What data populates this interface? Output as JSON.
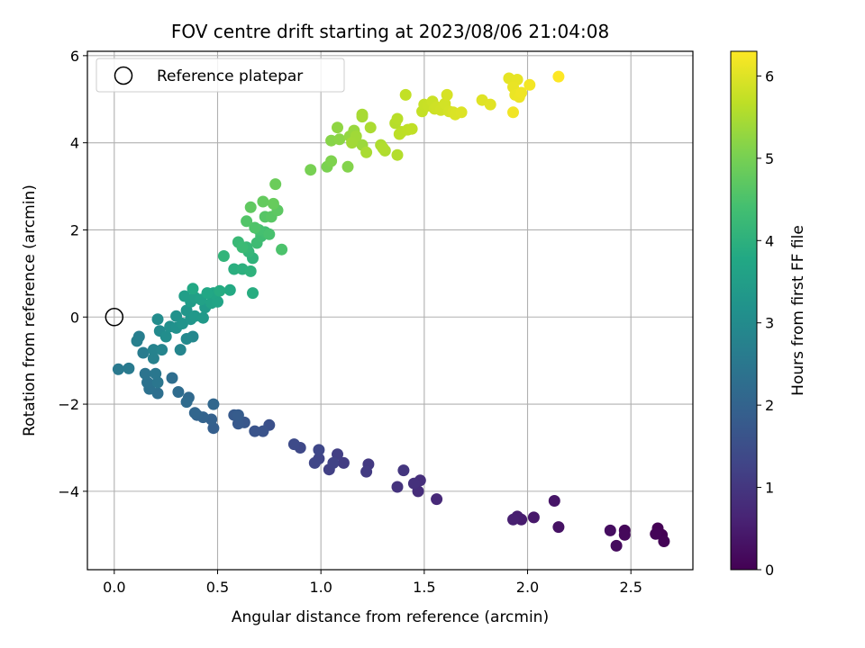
{
  "chart_data": {
    "type": "scatter",
    "title": "FOV centre drift starting at 2023/08/06 21:04:08",
    "xlabel": "Angular distance from reference (arcmin)",
    "ylabel": "Rotation from reference (arcmin)",
    "xlim": [
      -0.13,
      2.8
    ],
    "ylim": [
      -5.8,
      6.1
    ],
    "xticks": [
      0.0,
      0.5,
      1.0,
      1.5,
      2.0,
      2.5
    ],
    "xtick_labels": [
      "0.0",
      "0.5",
      "1.0",
      "1.5",
      "2.0",
      "2.5"
    ],
    "yticks": [
      -4,
      -2,
      0,
      2,
      4,
      6
    ],
    "ytick_labels": [
      "−4",
      "−2",
      "0",
      "2",
      "4",
      "6"
    ],
    "grid": true,
    "legend": {
      "position": "top-left",
      "entries": [
        "Reference platepar"
      ]
    },
    "reference_point": {
      "x": 0.0,
      "y": 0.0
    },
    "colorbar": {
      "label": "Hours from first FF file",
      "colormap": "viridis",
      "range": [
        0,
        6.3
      ],
      "ticks": [
        0,
        1,
        2,
        3,
        4,
        5,
        6
      ],
      "tick_labels": [
        "0",
        "1",
        "2",
        "3",
        "4",
        "5",
        "6"
      ]
    },
    "series": [
      {
        "points": [
          [
            2.65,
            -5.0,
            0.0
          ],
          [
            2.63,
            -4.85,
            0.02
          ],
          [
            2.66,
            -5.15,
            0.04
          ],
          [
            2.62,
            -4.98,
            0.06
          ],
          [
            2.47,
            -4.9,
            0.1
          ],
          [
            2.47,
            -5.0,
            0.14
          ],
          [
            2.43,
            -5.25,
            0.18
          ],
          [
            2.4,
            -4.9,
            0.22
          ],
          [
            2.15,
            -4.82,
            0.3
          ],
          [
            2.13,
            -4.22,
            0.36
          ],
          [
            2.03,
            -4.6,
            0.42
          ],
          [
            1.97,
            -4.65,
            0.48
          ],
          [
            1.95,
            -4.58,
            0.52
          ],
          [
            1.93,
            -4.65,
            0.56
          ],
          [
            1.56,
            -4.18,
            0.72
          ],
          [
            1.47,
            -4.0,
            0.8
          ],
          [
            1.48,
            -3.75,
            0.84
          ],
          [
            1.45,
            -3.82,
            0.88
          ],
          [
            1.37,
            -3.9,
            0.92
          ],
          [
            1.4,
            -3.52,
            0.98
          ],
          [
            1.23,
            -3.38,
            1.04
          ],
          [
            1.22,
            -3.55,
            1.08
          ],
          [
            1.11,
            -3.35,
            1.12
          ],
          [
            1.08,
            -3.15,
            1.16
          ],
          [
            1.04,
            -3.5,
            1.2
          ],
          [
            1.06,
            -3.35,
            1.24
          ],
          [
            0.99,
            -3.25,
            1.28
          ],
          [
            0.97,
            -3.35,
            1.3
          ],
          [
            0.99,
            -3.05,
            1.34
          ],
          [
            0.9,
            -3.0,
            1.38
          ],
          [
            0.87,
            -2.92,
            1.42
          ],
          [
            0.75,
            -2.48,
            1.55
          ],
          [
            0.72,
            -2.62,
            1.6
          ],
          [
            0.68,
            -2.62,
            1.64
          ],
          [
            0.63,
            -2.42,
            1.7
          ],
          [
            0.6,
            -2.45,
            1.74
          ],
          [
            0.58,
            -2.25,
            1.78
          ],
          [
            0.6,
            -2.25,
            1.82
          ],
          [
            0.48,
            -2.55,
            1.9
          ],
          [
            0.47,
            -2.35,
            1.94
          ],
          [
            0.43,
            -2.3,
            1.98
          ],
          [
            0.4,
            -2.25,
            2.02
          ],
          [
            0.39,
            -2.2,
            2.06
          ],
          [
            0.48,
            -2.0,
            2.1
          ],
          [
            0.36,
            -1.85,
            2.14
          ],
          [
            0.35,
            -1.95,
            2.18
          ],
          [
            0.31,
            -1.72,
            2.22
          ],
          [
            0.28,
            -1.4,
            2.26
          ],
          [
            0.21,
            -1.75,
            2.3
          ],
          [
            0.17,
            -1.65,
            2.34
          ],
          [
            0.16,
            -1.5,
            2.38
          ],
          [
            0.15,
            -1.3,
            2.42
          ],
          [
            0.21,
            -1.5,
            2.46
          ],
          [
            0.2,
            -1.3,
            2.5
          ],
          [
            0.02,
            -1.2,
            2.54
          ],
          [
            0.07,
            -1.18,
            2.58
          ],
          [
            0.14,
            -0.82,
            2.62
          ],
          [
            0.12,
            -0.45,
            2.66
          ],
          [
            0.11,
            -0.55,
            2.7
          ],
          [
            0.19,
            -0.95,
            2.74
          ],
          [
            0.19,
            -0.75,
            2.78
          ],
          [
            0.23,
            -0.75,
            2.82
          ],
          [
            0.32,
            -0.75,
            2.86
          ],
          [
            0.38,
            -0.45,
            2.9
          ],
          [
            0.35,
            -0.5,
            2.94
          ],
          [
            0.22,
            -0.32,
            2.98
          ],
          [
            0.21,
            -0.05,
            3.02
          ],
          [
            0.25,
            -0.45,
            3.06
          ],
          [
            0.27,
            -0.22,
            3.1
          ],
          [
            0.3,
            -0.25,
            3.14
          ],
          [
            0.3,
            0.02,
            3.18
          ],
          [
            0.33,
            -0.15,
            3.22
          ],
          [
            0.37,
            -0.05,
            3.26
          ],
          [
            0.35,
            0.15,
            3.3
          ],
          [
            0.39,
            0.02,
            3.34
          ],
          [
            0.43,
            -0.02,
            3.38
          ],
          [
            0.44,
            0.22,
            3.42
          ],
          [
            0.37,
            0.35,
            3.46
          ],
          [
            0.34,
            0.48,
            3.5
          ],
          [
            0.39,
            0.45,
            3.54
          ],
          [
            0.42,
            0.4,
            3.58
          ],
          [
            0.47,
            0.32,
            3.62
          ],
          [
            0.5,
            0.35,
            3.66
          ],
          [
            0.48,
            0.55,
            3.7
          ],
          [
            0.45,
            0.55,
            3.74
          ],
          [
            0.38,
            0.65,
            3.78
          ],
          [
            0.56,
            0.62,
            3.82
          ],
          [
            0.51,
            0.6,
            3.86
          ],
          [
            0.67,
            0.55,
            3.9
          ],
          [
            0.58,
            1.1,
            3.94
          ],
          [
            0.62,
            1.1,
            3.98
          ],
          [
            0.66,
            1.05,
            4.02
          ],
          [
            0.67,
            1.35,
            4.06
          ],
          [
            0.53,
            1.4,
            4.1
          ],
          [
            0.65,
            1.5,
            4.14
          ],
          [
            0.64,
            1.6,
            4.18
          ],
          [
            0.6,
            1.72,
            4.22
          ],
          [
            0.62,
            1.6,
            4.26
          ],
          [
            0.69,
            1.7,
            4.3
          ],
          [
            0.71,
            1.85,
            4.34
          ],
          [
            0.73,
            1.95,
            4.38
          ],
          [
            0.7,
            2.0,
            4.42
          ],
          [
            0.75,
            1.9,
            4.46
          ],
          [
            0.81,
            1.55,
            4.5
          ],
          [
            0.68,
            2.05,
            4.54
          ],
          [
            0.64,
            2.2,
            4.58
          ],
          [
            0.73,
            2.3,
            4.62
          ],
          [
            0.76,
            2.3,
            4.66
          ],
          [
            0.79,
            2.45,
            4.7
          ],
          [
            0.66,
            2.52,
            4.74
          ],
          [
            0.72,
            2.65,
            4.78
          ],
          [
            0.77,
            2.6,
            4.82
          ],
          [
            0.78,
            3.05,
            4.86
          ],
          [
            0.95,
            3.38,
            5.0
          ],
          [
            1.03,
            3.45,
            5.04
          ],
          [
            1.05,
            3.58,
            5.08
          ],
          [
            1.13,
            3.45,
            5.12
          ],
          [
            1.05,
            4.05,
            5.16
          ],
          [
            1.09,
            4.08,
            5.2
          ],
          [
            1.08,
            4.35,
            5.24
          ],
          [
            1.14,
            4.15,
            5.28
          ],
          [
            1.16,
            4.28,
            5.32
          ],
          [
            1.2,
            3.95,
            5.36
          ],
          [
            1.17,
            4.15,
            5.4
          ],
          [
            1.15,
            4.0,
            5.42
          ],
          [
            1.2,
            4.6,
            5.44
          ],
          [
            1.2,
            4.65,
            5.46
          ],
          [
            1.22,
            3.78,
            5.48
          ],
          [
            1.24,
            4.35,
            5.5
          ],
          [
            1.29,
            3.95,
            5.52
          ],
          [
            1.31,
            3.82,
            5.54
          ],
          [
            1.3,
            3.88,
            5.56
          ],
          [
            1.37,
            3.72,
            5.58
          ],
          [
            1.36,
            4.45,
            5.6
          ],
          [
            1.37,
            4.55,
            5.62
          ],
          [
            1.39,
            4.25,
            5.64
          ],
          [
            1.38,
            4.2,
            5.66
          ],
          [
            1.42,
            4.3,
            5.68
          ],
          [
            1.44,
            4.32,
            5.7
          ],
          [
            1.41,
            5.1,
            5.72
          ],
          [
            1.49,
            4.72,
            5.74
          ],
          [
            1.5,
            4.88,
            5.76
          ],
          [
            1.52,
            4.85,
            5.78
          ],
          [
            1.54,
            4.95,
            5.8
          ],
          [
            1.55,
            4.78,
            5.82
          ],
          [
            1.56,
            4.82,
            5.84
          ],
          [
            1.58,
            4.75,
            5.86
          ],
          [
            1.6,
            4.9,
            5.88
          ],
          [
            1.62,
            4.72,
            5.9
          ],
          [
            1.61,
            5.1,
            5.92
          ],
          [
            1.64,
            4.7,
            5.94
          ],
          [
            1.65,
            4.65,
            5.96
          ],
          [
            1.68,
            4.7,
            5.98
          ],
          [
            1.78,
            4.98,
            6.0
          ],
          [
            1.82,
            4.88,
            6.02
          ],
          [
            1.91,
            5.48,
            6.06
          ],
          [
            1.95,
            5.45,
            6.08
          ],
          [
            1.93,
            5.28,
            6.1
          ],
          [
            1.94,
            5.1,
            6.12
          ],
          [
            1.96,
            5.05,
            6.14
          ],
          [
            1.97,
            5.15,
            6.16
          ],
          [
            1.93,
            4.7,
            6.18
          ],
          [
            2.01,
            5.33,
            6.2
          ],
          [
            2.15,
            5.52,
            6.3
          ]
        ]
      }
    ]
  }
}
